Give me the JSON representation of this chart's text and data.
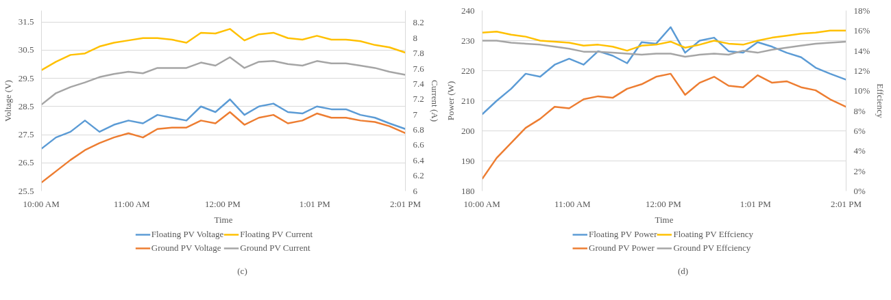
{
  "chart_data": [
    {
      "type": "line",
      "xlabel": "Time",
      "ylabel": "Voltage (V)",
      "y2label": "Current (A)",
      "annotations": [
        "(c)"
      ],
      "grid": "y",
      "legend": "bottom",
      "line_style": "solid",
      "x": [
        10,
        10.16,
        10.32,
        10.48,
        10.64,
        10.8,
        10.96,
        11.12,
        11.28,
        11.44,
        11.6,
        11.76,
        11.92,
        12.08,
        12.24,
        12.4,
        12.56,
        12.72,
        12.88,
        13.04,
        13.2,
        13.36,
        13.52,
        13.68,
        13.84,
        14.0167
      ],
      "xlim": [
        10,
        14.0167
      ],
      "xticks": [
        {
          "value": 10,
          "label": "10:00 AM"
        },
        {
          "value": 11,
          "label": "11:00 AM"
        },
        {
          "value": 12,
          "label": "12:00 PM"
        },
        {
          "value": 13.0167,
          "label": "1:01 PM"
        },
        {
          "value": 14.0167,
          "label": "2:01 PM"
        }
      ],
      "ylim": [
        25.5,
        31.9
      ],
      "yticks": [
        25.5,
        26.5,
        27.5,
        28.5,
        29.5,
        30.5,
        31.5
      ],
      "y2lim": [
        6,
        8.36
      ],
      "y2ticks": [
        6,
        6.2,
        6.4,
        6.6,
        6.8,
        7,
        7.2,
        7.4,
        7.6,
        7.8,
        8,
        8.2
      ],
      "series": [
        {
          "name": "Floating PV Voltage",
          "color": "#5b9bd5",
          "values": [
            27.0,
            27.4,
            27.6,
            28.0,
            27.6,
            27.85,
            28.0,
            27.9,
            28.2,
            28.1,
            28.0,
            28.5,
            28.3,
            28.75,
            28.2,
            28.5,
            28.6,
            28.3,
            28.25,
            28.5,
            28.4,
            28.4,
            28.2,
            28.1,
            27.9,
            27.7
          ]
        },
        {
          "name": "Ground PV Voltage",
          "color": "#ed7d31",
          "values": [
            25.8,
            26.2,
            26.6,
            26.95,
            27.2,
            27.4,
            27.55,
            27.4,
            27.7,
            27.75,
            27.75,
            28.0,
            27.9,
            28.3,
            27.85,
            28.1,
            28.2,
            27.9,
            28.0,
            28.25,
            28.1,
            28.1,
            28.0,
            27.95,
            27.8,
            27.55
          ]
        },
        {
          "name": "Floating PV Current",
          "color": "#ffc000",
          "axis": "y2",
          "values": [
            7.58,
            7.69,
            7.78,
            7.8,
            7.89,
            7.94,
            7.97,
            8.0,
            8.0,
            7.98,
            7.94,
            8.07,
            8.06,
            8.12,
            7.97,
            8.05,
            8.07,
            8.0,
            7.98,
            8.03,
            7.98,
            7.98,
            7.96,
            7.91,
            7.88,
            7.81
          ]
        },
        {
          "name": "Ground PV Current",
          "color": "#a5a5a5",
          "axis": "y2",
          "values": [
            7.13,
            7.28,
            7.36,
            7.42,
            7.49,
            7.53,
            7.56,
            7.54,
            7.61,
            7.61,
            7.61,
            7.68,
            7.64,
            7.75,
            7.61,
            7.69,
            7.7,
            7.66,
            7.64,
            7.7,
            7.67,
            7.67,
            7.64,
            7.61,
            7.56,
            7.52
          ]
        }
      ]
    },
    {
      "type": "line",
      "xlabel": "Time",
      "ylabel": "Power (W)",
      "y2label": "Effciency",
      "annotations": [
        "(d)"
      ],
      "grid": "y",
      "legend": "bottom",
      "line_style": "solid",
      "x": [
        10,
        10.16,
        10.32,
        10.48,
        10.64,
        10.8,
        10.96,
        11.12,
        11.28,
        11.44,
        11.6,
        11.76,
        11.92,
        12.08,
        12.24,
        12.4,
        12.56,
        12.72,
        12.88,
        13.04,
        13.2,
        13.36,
        13.52,
        13.68,
        13.84,
        14.0167
      ],
      "xlim": [
        10,
        14.0167
      ],
      "xticks": [
        {
          "value": 10,
          "label": "10:00 AM"
        },
        {
          "value": 11,
          "label": "11:00 AM"
        },
        {
          "value": 12,
          "label": "12:00 PM"
        },
        {
          "value": 13.0167,
          "label": "1:01 PM"
        },
        {
          "value": 14.0167,
          "label": "2:01 PM"
        }
      ],
      "ylim": [
        180,
        240
      ],
      "yticks": [
        180,
        190,
        200,
        210,
        220,
        230,
        240
      ],
      "y2lim": [
        0,
        18
      ],
      "y2ticks": [
        {
          "value": 0,
          "label": "0%"
        },
        {
          "value": 2,
          "label": "2%"
        },
        {
          "value": 4,
          "label": "4%"
        },
        {
          "value": 6,
          "label": "6%"
        },
        {
          "value": 8,
          "label": "8%"
        },
        {
          "value": 10,
          "label": "10%"
        },
        {
          "value": 12,
          "label": "12%"
        },
        {
          "value": 14,
          "label": "14%"
        },
        {
          "value": 16,
          "label": "16%"
        },
        {
          "value": 18,
          "label": "18%"
        }
      ],
      "series": [
        {
          "name": "Floating PV Power",
          "color": "#5b9bd5",
          "values": [
            205.5,
            210,
            214,
            219,
            218,
            222,
            224,
            222,
            226.5,
            225,
            222.5,
            229.5,
            229,
            234.5,
            226,
            230,
            231,
            226.5,
            226,
            229.5,
            228,
            226,
            224.5,
            221,
            219,
            217
          ]
        },
        {
          "name": "Ground PV Power",
          "color": "#ed7d31",
          "values": [
            184,
            191,
            196,
            201,
            204,
            208,
            207.5,
            210.5,
            211.5,
            211,
            214,
            215.5,
            218,
            219,
            212,
            216,
            218,
            215,
            214.5,
            218.5,
            216,
            216.5,
            214.5,
            213.5,
            210.5,
            208
          ]
        },
        {
          "name": "Floating PV Effciency",
          "color": "#ffc000",
          "axis": "y2",
          "values": [
            15.8,
            15.9,
            15.6,
            15.4,
            15.0,
            14.9,
            14.8,
            14.5,
            14.6,
            14.4,
            14.0,
            14.5,
            14.6,
            14.9,
            14.3,
            14.6,
            15.0,
            14.7,
            14.6,
            15.0,
            15.3,
            15.5,
            15.7,
            15.8,
            16.0,
            16.0
          ]
        },
        {
          "name": "Ground PV Effciency",
          "color": "#a5a5a5",
          "axis": "y2",
          "values": [
            15.0,
            15.0,
            14.8,
            14.7,
            14.6,
            14.4,
            14.2,
            13.9,
            13.9,
            13.8,
            13.7,
            13.6,
            13.7,
            13.7,
            13.4,
            13.6,
            13.7,
            13.6,
            14.0,
            13.8,
            14.1,
            14.3,
            14.5,
            14.7,
            14.8,
            14.9
          ]
        }
      ]
    }
  ]
}
